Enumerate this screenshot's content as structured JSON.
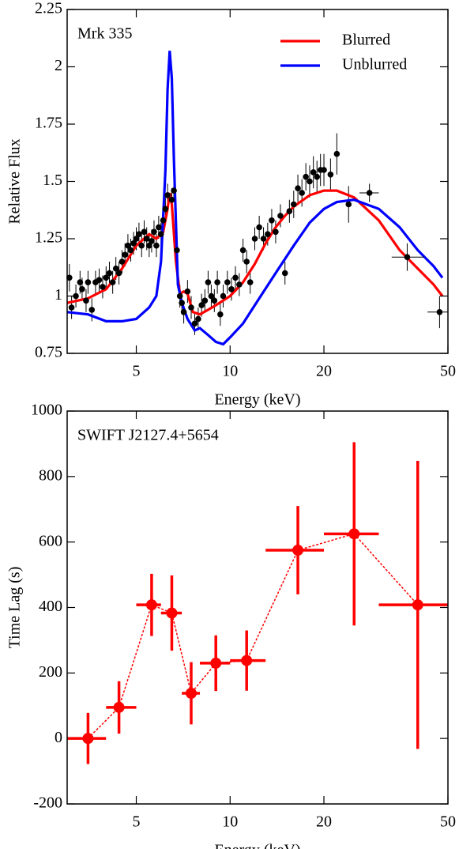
{
  "chart_data": [
    {
      "type": "scatter",
      "annotation": "Mrk 335",
      "xlabel": "Energy (keV)",
      "ylabel": "Relative Flux",
      "xscale": "log",
      "xlim": [
        3,
        50
      ],
      "xticks": [
        5,
        10,
        20,
        50
      ],
      "ylim": [
        0.75,
        2.25
      ],
      "yticks": [
        0.75,
        1,
        1.25,
        1.5,
        1.75,
        2,
        2.25
      ],
      "legend": "upper right",
      "points": {
        "color": "#000000",
        "x": [
          3.05,
          3.1,
          3.2,
          3.3,
          3.35,
          3.45,
          3.5,
          3.6,
          3.7,
          3.8,
          3.9,
          4.0,
          4.1,
          4.2,
          4.3,
          4.4,
          4.5,
          4.6,
          4.7,
          4.8,
          4.9,
          5.0,
          5.1,
          5.2,
          5.3,
          5.4,
          5.5,
          5.6,
          5.7,
          5.8,
          5.9,
          6.0,
          6.1,
          6.2,
          6.3,
          6.5,
          6.6,
          6.75,
          6.9,
          7.0,
          7.1,
          7.3,
          7.5,
          7.7,
          7.9,
          8.1,
          8.3,
          8.5,
          8.7,
          8.9,
          9.1,
          9.3,
          9.5,
          9.8,
          10.1,
          10.4,
          10.7,
          11,
          11.3,
          11.6,
          12,
          12.4,
          12.8,
          13.2,
          13.6,
          14,
          14.5,
          15,
          15.5,
          16,
          16.5,
          17,
          17.5,
          18,
          18.5,
          19,
          19.5,
          20,
          21,
          22,
          24,
          28,
          37,
          47
        ],
        "y": [
          1.08,
          0.95,
          1.0,
          1.06,
          1.03,
          0.98,
          1.06,
          0.94,
          1.06,
          1.07,
          1.04,
          1.08,
          1.1,
          1.06,
          1.12,
          1.1,
          1.15,
          1.18,
          1.22,
          1.2,
          1.23,
          1.25,
          1.27,
          1.22,
          1.28,
          1.25,
          1.22,
          1.24,
          1.28,
          1.22,
          1.3,
          1.27,
          1.33,
          1.38,
          1.44,
          1.42,
          1.46,
          1.2,
          1.0,
          0.97,
          0.93,
          1.02,
          0.95,
          0.88,
          0.9,
          0.96,
          0.98,
          1.06,
          1.0,
          0.98,
          1.06,
          0.92,
          1.0,
          1.06,
          1.03,
          1.08,
          1.05,
          1.2,
          1.15,
          1.06,
          1.25,
          1.3,
          1.25,
          1.27,
          1.33,
          1.28,
          1.35,
          1.1,
          1.37,
          1.4,
          1.47,
          1.45,
          1.52,
          1.5,
          1.54,
          1.52,
          1.55,
          1.55,
          1.53,
          1.62,
          1.4,
          1.45,
          1.17,
          0.93
        ],
        "yerr": [
          0.06,
          0.05,
          0.05,
          0.05,
          0.05,
          0.05,
          0.05,
          0.05,
          0.05,
          0.05,
          0.05,
          0.05,
          0.05,
          0.05,
          0.05,
          0.05,
          0.05,
          0.05,
          0.05,
          0.05,
          0.05,
          0.05,
          0.05,
          0.05,
          0.05,
          0.05,
          0.05,
          0.05,
          0.05,
          0.05,
          0.05,
          0.05,
          0.05,
          0.05,
          0.05,
          0.05,
          0.05,
          0.05,
          0.05,
          0.05,
          0.05,
          0.05,
          0.05,
          0.05,
          0.05,
          0.05,
          0.05,
          0.05,
          0.05,
          0.05,
          0.05,
          0.05,
          0.05,
          0.05,
          0.05,
          0.05,
          0.05,
          0.05,
          0.05,
          0.05,
          0.05,
          0.05,
          0.05,
          0.05,
          0.05,
          0.05,
          0.05,
          0.05,
          0.05,
          0.06,
          0.06,
          0.06,
          0.06,
          0.07,
          0.07,
          0.07,
          0.07,
          0.07,
          0.07,
          0.09,
          0.08,
          0.04,
          0.06,
          0.07
        ],
        "x_low": [
          null,
          null,
          null,
          null,
          null,
          null,
          null,
          null,
          null,
          null,
          null,
          null,
          null,
          null,
          null,
          null,
          null,
          null,
          null,
          null,
          null,
          null,
          null,
          null,
          null,
          null,
          null,
          null,
          null,
          null,
          null,
          null,
          null,
          null,
          null,
          null,
          null,
          null,
          null,
          null,
          null,
          null,
          null,
          null,
          null,
          null,
          null,
          null,
          null,
          null,
          null,
          null,
          null,
          null,
          null,
          null,
          null,
          null,
          null,
          null,
          null,
          null,
          null,
          null,
          null,
          null,
          null,
          null,
          null,
          null,
          null,
          null,
          null,
          null,
          null,
          null,
          null,
          null,
          null,
          null,
          null,
          26,
          33,
          43
        ],
        "x_high": [
          null,
          null,
          null,
          null,
          null,
          null,
          null,
          null,
          null,
          null,
          null,
          null,
          null,
          null,
          null,
          null,
          null,
          null,
          null,
          null,
          null,
          null,
          null,
          null,
          null,
          null,
          null,
          null,
          null,
          null,
          null,
          null,
          null,
          null,
          null,
          null,
          null,
          null,
          null,
          null,
          null,
          null,
          null,
          null,
          null,
          null,
          null,
          null,
          null,
          null,
          null,
          null,
          null,
          null,
          null,
          null,
          null,
          null,
          null,
          null,
          null,
          null,
          null,
          null,
          null,
          null,
          null,
          null,
          null,
          null,
          null,
          null,
          null,
          null,
          null,
          null,
          null,
          null,
          null,
          null,
          null,
          30,
          42,
          50
        ]
      },
      "series": [
        {
          "name": "Blurred",
          "color": "#ff0000",
          "x": [
            3,
            3.5,
            4,
            4.5,
            5,
            5.5,
            5.8,
            6.1,
            6.3,
            6.4,
            6.5,
            6.7,
            6.9,
            7.1,
            7.3,
            7.6,
            8,
            8.5,
            9,
            10,
            11,
            12,
            13,
            14,
            15,
            16,
            18,
            20,
            22,
            25,
            30,
            35,
            40,
            45,
            48
          ],
          "values": [
            0.97,
            0.99,
            1.03,
            1.12,
            1.22,
            1.27,
            1.25,
            1.28,
            1.38,
            1.45,
            1.4,
            1.15,
            1.01,
            1.02,
            1.01,
            0.93,
            0.92,
            0.94,
            0.96,
            1.0,
            1.06,
            1.14,
            1.23,
            1.3,
            1.35,
            1.39,
            1.44,
            1.46,
            1.46,
            1.43,
            1.33,
            1.2,
            1.12,
            1.05,
            1.0
          ]
        },
        {
          "name": "Unblurred",
          "color": "#0000ff",
          "x": [
            3,
            3.5,
            4,
            4.5,
            5,
            5.5,
            5.8,
            6.0,
            6.2,
            6.3,
            6.4,
            6.5,
            6.6,
            6.8,
            7.0,
            7.3,
            7.7,
            8,
            8.5,
            9,
            9.5,
            10,
            11,
            12,
            14,
            16,
            18,
            20,
            22,
            25,
            30,
            35,
            40,
            45,
            48
          ],
          "values": [
            0.93,
            0.92,
            0.89,
            0.89,
            0.9,
            0.95,
            1.0,
            1.15,
            1.55,
            1.9,
            2.07,
            1.95,
            1.6,
            1.05,
            0.97,
            0.9,
            0.85,
            0.86,
            0.83,
            0.8,
            0.79,
            0.82,
            0.88,
            0.96,
            1.1,
            1.22,
            1.32,
            1.38,
            1.41,
            1.42,
            1.38,
            1.3,
            1.2,
            1.13,
            1.08
          ]
        }
      ]
    },
    {
      "type": "errorbar",
      "annotation": "SWIFT J2127.4+5654",
      "xlabel": "Energy (keV)",
      "ylabel": "Time Lag (s)",
      "xscale": "log",
      "xlim": [
        3,
        50
      ],
      "xticks": [
        5,
        10,
        20,
        50
      ],
      "ylim": [
        -200,
        1000
      ],
      "yticks": [
        -200,
        0,
        200,
        400,
        600,
        800,
        1000
      ],
      "color": "#ff0000",
      "x": [
        3.5,
        4.4,
        5.6,
        6.5,
        7.5,
        9,
        11.3,
        16.5,
        25,
        40
      ],
      "values": [
        0,
        95,
        408,
        383,
        138,
        230,
        238,
        575,
        625,
        408
      ],
      "yerr": [
        78,
        80,
        95,
        115,
        95,
        85,
        92,
        135,
        280,
        440
      ],
      "x_low": [
        3,
        4,
        5,
        6,
        7,
        8,
        10,
        13,
        20,
        30
      ],
      "x_high": [
        4,
        5,
        6,
        7,
        8,
        10,
        13,
        20,
        30,
        50
      ]
    }
  ]
}
